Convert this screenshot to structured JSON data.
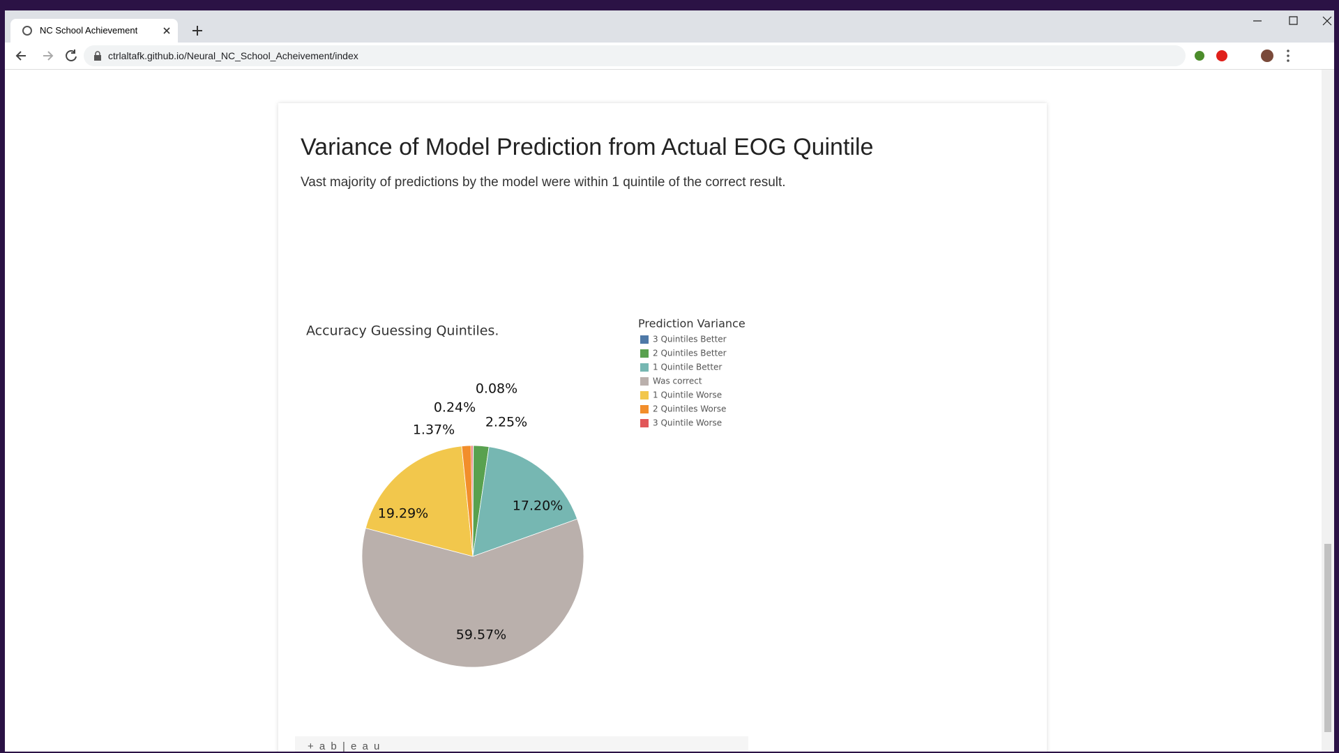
{
  "browser": {
    "tab_title": "NC School Achievement",
    "url": "ctrlaltafk.github.io/Neural_NC_School_Acheivement/index"
  },
  "page": {
    "title": "Variance of Model Prediction from Actual EOG Quintile",
    "subtitle": "Vast majority of predictions by the model were within 1 quintile of the correct result."
  },
  "chart_data": {
    "type": "pie",
    "title": "Accuracy Guessing Quintiles.",
    "legend_title": "Prediction Variance",
    "categories": [
      "3 Quintiles Better",
      "2 Quintiles Better",
      "1 Quintile Better",
      "Was correct",
      "1 Quintile Worse",
      "2 Quintiles Worse",
      "3 Quintile Worse"
    ],
    "values": [
      0.08,
      2.25,
      17.2,
      59.57,
      19.29,
      1.37,
      0.24
    ],
    "value_labels": [
      "0.08%",
      "2.25%",
      "17.20%",
      "59.57%",
      "19.29%",
      "1.37%",
      "0.24%"
    ],
    "colors": [
      "#4e79a7",
      "#59a14f",
      "#76b7b2",
      "#bab0ac",
      "#f2c74c",
      "#f28e2b",
      "#e15759"
    ]
  },
  "footer": {
    "logo": "+ a b | e a u"
  }
}
